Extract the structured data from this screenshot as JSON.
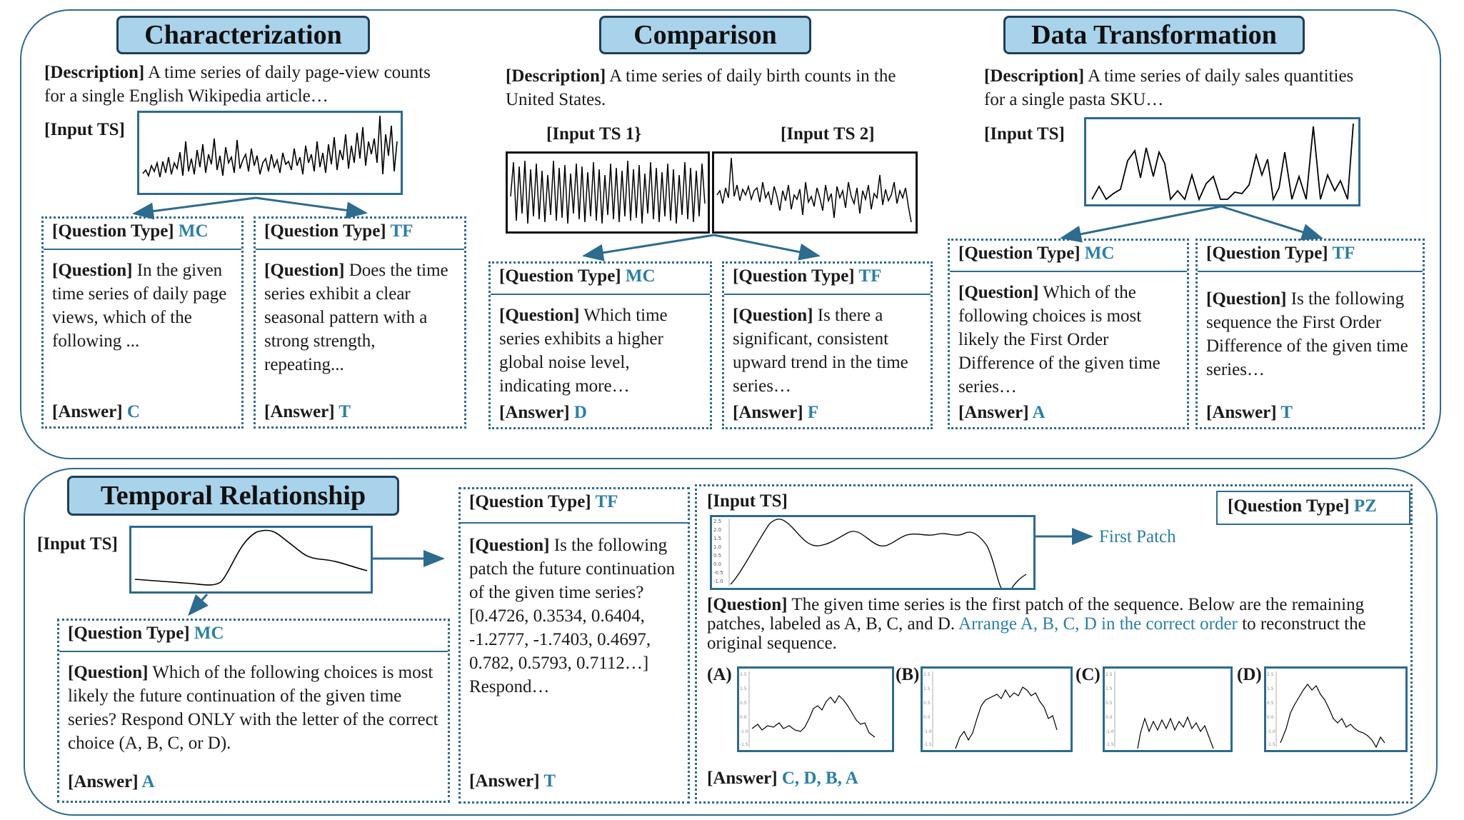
{
  "labels": {
    "description": "[Description]",
    "input_ts": "[Input TS]",
    "question_type": "[Question Type]",
    "question": "[Question]",
    "answer": "[Answer]"
  },
  "characterization": {
    "title": "Characterization",
    "description": "A time series of daily page-view counts for a single English Wikipedia article…",
    "mc": {
      "type": "MC",
      "question": "In the given time series of daily page views, which of the following ...",
      "answer": "C"
    },
    "tf": {
      "type": "TF",
      "question": "Does the time series exhibit a clear seasonal pattern with a strong strength, repeating...",
      "answer": "T"
    }
  },
  "comparison": {
    "title": "Comparison",
    "description": "A time series of daily birth counts in the United States.",
    "input_ts1": "[Input TS 1}",
    "input_ts2": "[Input TS 2]",
    "mc": {
      "type": "MC",
      "question": "Which time series exhibits a higher global noise level, indicating more…",
      "answer": "D"
    },
    "tf": {
      "type": "TF",
      "question": "Is there a significant, consistent upward trend in the time series…",
      "answer": "F"
    }
  },
  "data_transformation": {
    "title": "Data Transformation",
    "description": "A time series of daily sales quantities for a single pasta SKU…",
    "mc": {
      "type": "MC",
      "question": "Which of the following choices is most likely the First Order Difference of the given time series…",
      "answer": "A"
    },
    "tf": {
      "type": "TF",
      "question": "Is the following sequence the First Order Difference of the given time series…",
      "answer": "T"
    }
  },
  "temporal": {
    "title": "Temporal Relationship",
    "mc": {
      "type": "MC",
      "question": "Which of the following choices is most likely the future continuation of the given time series? Respond ONLY with the letter of the correct choice (A, B, C, or D).",
      "answer": "A"
    },
    "tf": {
      "type": "TF",
      "question": "Is the following patch the future continuation of the given time series? [0.4726, 0.3534, 0.6404, -1.2777, -1.7403, 0.4697, 0.782, 0.5793, 0.7112…] Respond…",
      "answer": "T"
    },
    "pz": {
      "type": "PZ",
      "first_patch": "First Patch",
      "question_plain": "The given time series is the first patch of the sequence. Below are the remaining patches, labeled as A, B, C, and D.",
      "question_highlight": "Arrange A, B, C, D in the correct order",
      "question_tail": "to reconstruct the original sequence.",
      "choices": [
        "(A)",
        "(B)",
        "(C)",
        "(D)"
      ],
      "answer": "C, D, B, A",
      "yticks": [
        "2.5",
        "2.0",
        "1.5",
        "1.0",
        "0.5",
        "0.0",
        "-0.5",
        "-1.0"
      ]
    }
  },
  "colors": {
    "frame": "#2d6b8f",
    "pill": "#a9d3ea",
    "accent": "#2a7fa6"
  }
}
